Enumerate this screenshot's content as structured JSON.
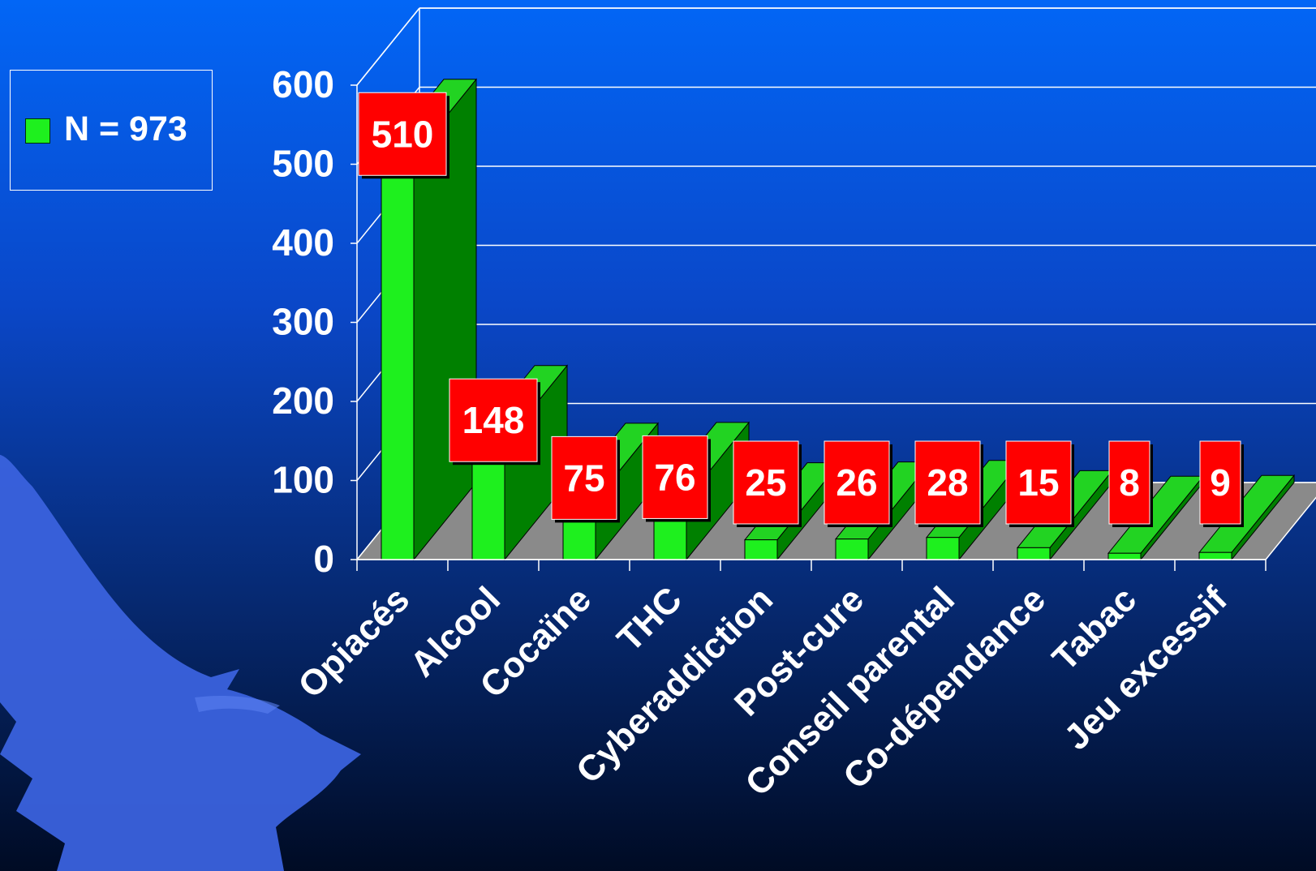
{
  "legend": {
    "label": "N = 973",
    "color": "#1ef01e"
  },
  "colors": {
    "bar_front": "#1ef01e",
    "bar_side": "#008000",
    "bar_top": "#22d322",
    "floor": "#8a8a8a",
    "data_label_bg": "#ff0000",
    "text": "#ffffff"
  },
  "chart_data": {
    "type": "bar",
    "categories": [
      "Opiacés",
      "Alcool",
      "Cocaïne",
      "THC",
      "Cyberaddiction",
      "Post-cure",
      "Conseil parental",
      "Co-dépendance",
      "Tabac",
      "Jeu excessif"
    ],
    "values": [
      510,
      148,
      75,
      76,
      25,
      26,
      28,
      15,
      8,
      9
    ],
    "data_labels": [
      "510",
      "148",
      "75",
      "76",
      "25",
      "26",
      "28",
      "15",
      "8",
      "9"
    ],
    "ylim": [
      0,
      600
    ],
    "yticks": [
      0,
      100,
      200,
      300,
      400,
      500,
      600
    ],
    "grid": true,
    "legend_position": "top-left",
    "style": "3d"
  }
}
